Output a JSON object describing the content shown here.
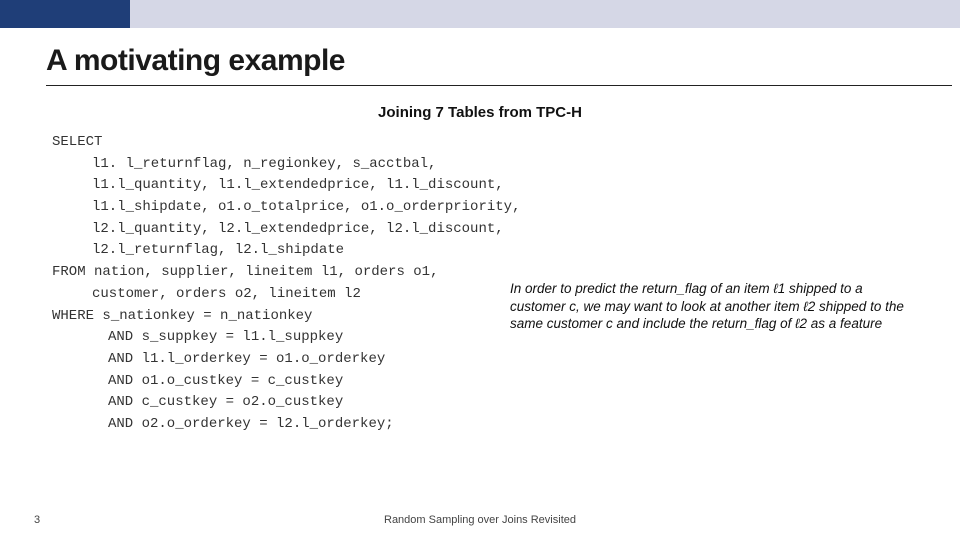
{
  "colors": {
    "top_bar_bg": "#d5d7e6",
    "top_bar_accent": "#1f3e78",
    "title_color": "#1a1a1a",
    "underline_color": "#222222",
    "text_color": "#333333",
    "caption_color": "#111111",
    "footer_color": "#444444",
    "background": "#ffffff"
  },
  "title": "A motivating example",
  "subtitle": "Joining 7 Tables from TPC-H",
  "sql": {
    "select_kw": "SELECT",
    "select_lines": [
      "l1. l_returnflag, n_regionkey, s_acctbal,",
      "l1.l_quantity, l1.l_extendedprice, l1.l_discount,",
      "l1.l_shipdate, o1.o_totalprice, o1.o_orderpriority,",
      "l2.l_quantity, l2.l_extendedprice, l2.l_discount,",
      "l2.l_returnflag, l2.l_shipdate"
    ],
    "from_kw": "FROM",
    "from_line1": " nation, supplier, lineitem l1, orders o1,",
    "from_line2": "customer, orders o2, lineitem l2",
    "where_kw": "WHERE",
    "where_first": "   s_nationkey = n_nationkey",
    "and_lines": [
      "AND s_suppkey = l1.l_suppkey",
      "AND l1.l_orderkey = o1.o_orderkey",
      "AND o1.o_custkey = c_custkey",
      "AND c_custkey = o2.o_custkey",
      "AND o2.o_orderkey = l2.l_orderkey;"
    ]
  },
  "caption": {
    "l1": "In order to predict the return_flag of an item ℓ1",
    "l2": "shipped to a customer c, we may want to look at",
    "l3": "another item ℓ2 shipped to the same customer c",
    "l4": "and include the return_flag of ℓ2 as a feature"
  },
  "page_number": "3",
  "footer": "Random Sampling over Joins Revisited"
}
